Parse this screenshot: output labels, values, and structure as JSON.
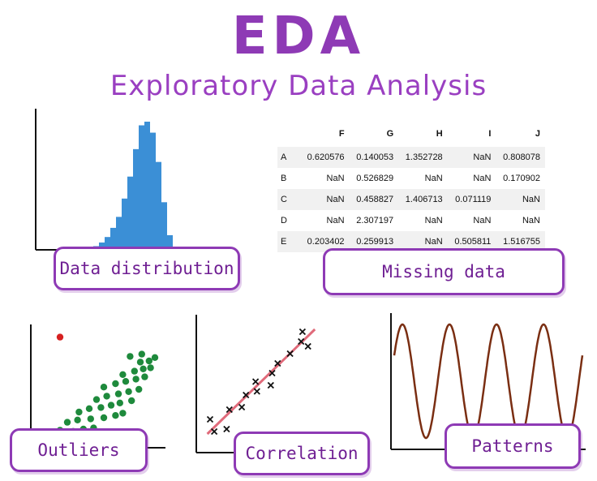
{
  "title": "EDA",
  "subtitle": "Exploratory Data Analysis",
  "labels": {
    "distribution": "Data distribution",
    "missing": "Missing data",
    "outliers": "Outliers",
    "correlation": "Correlation",
    "patterns": "Patterns"
  },
  "colors": {
    "accent": "#8e3ab5",
    "histogram": "#3b8fd6",
    "scatter": "#1e8a3c",
    "outlier": "#d62020",
    "trend": "#e06a7a",
    "wave": "#7a2e12"
  },
  "missing_table": {
    "columns": [
      "",
      "F",
      "G",
      "H",
      "I",
      "J"
    ],
    "rows": [
      [
        "A",
        "0.620576",
        "0.140053",
        "1.352728",
        "NaN",
        "0.808078"
      ],
      [
        "B",
        "NaN",
        "0.526829",
        "NaN",
        "NaN",
        "0.170902"
      ],
      [
        "C",
        "NaN",
        "0.458827",
        "1.406713",
        "0.071119",
        "NaN"
      ],
      [
        "D",
        "NaN",
        "2.307197",
        "NaN",
        "NaN",
        "NaN"
      ],
      [
        "E",
        "0.203402",
        "0.259913",
        "NaN",
        "0.505811",
        "1.516755"
      ]
    ]
  },
  "chart_data": [
    {
      "type": "bar",
      "values": [
        1,
        2,
        4,
        7,
        12,
        18,
        28,
        40,
        55,
        68,
        70,
        64,
        48,
        26,
        8
      ]
    },
    {
      "type": "scatter",
      "points": [
        [
          1.2,
          1.2
        ],
        [
          2,
          1.4
        ],
        [
          2.9,
          1.3
        ],
        [
          3.6,
          1.5
        ],
        [
          4.3,
          1.6
        ],
        [
          2.5,
          2.1
        ],
        [
          3.2,
          2.3
        ],
        [
          4.1,
          2.4
        ],
        [
          5,
          2.5
        ],
        [
          5.8,
          2.7
        ],
        [
          6.3,
          2.9
        ],
        [
          3.3,
          3
        ],
        [
          4,
          3.3
        ],
        [
          4.8,
          3.4
        ],
        [
          5.5,
          3.6
        ],
        [
          6.1,
          3.8
        ],
        [
          6.9,
          4
        ],
        [
          4.5,
          4.1
        ],
        [
          5.2,
          4.4
        ],
        [
          6,
          4.6
        ],
        [
          6.7,
          4.8
        ],
        [
          7.4,
          5
        ],
        [
          5,
          5.2
        ],
        [
          5.8,
          5.5
        ],
        [
          6.5,
          5.7
        ],
        [
          7.2,
          5.9
        ],
        [
          7.8,
          6.1
        ],
        [
          6.3,
          6.3
        ],
        [
          7.1,
          6.6
        ],
        [
          7.7,
          6.8
        ],
        [
          8.2,
          6.9
        ],
        [
          7.5,
          7.4
        ],
        [
          8.1,
          7.5
        ],
        [
          8.5,
          7.8
        ],
        [
          6.8,
          7.9
        ],
        [
          7.6,
          8.1
        ],
        [
          2,
          9.6
        ]
      ],
      "outliers": [
        [
          2,
          9.6
        ]
      ]
    },
    {
      "type": "scatter",
      "points": [
        [
          1,
          1.8
        ],
        [
          1.3,
          0.8
        ],
        [
          2.2,
          1
        ],
        [
          2.4,
          2.6
        ],
        [
          3.3,
          2.8
        ],
        [
          3.6,
          3.8
        ],
        [
          4.4,
          4.1
        ],
        [
          4.3,
          4.9
        ],
        [
          5.4,
          4.6
        ],
        [
          5.5,
          5.6
        ],
        [
          5.9,
          6.4
        ],
        [
          6.8,
          7.2
        ],
        [
          7.6,
          8.2
        ],
        [
          8.1,
          7.8
        ],
        [
          7.7,
          9
        ]
      ],
      "trend": [
        [
          0.8,
          0.6
        ],
        [
          8.6,
          9.2
        ]
      ]
    },
    {
      "type": "line",
      "cycles": 4
    }
  ]
}
